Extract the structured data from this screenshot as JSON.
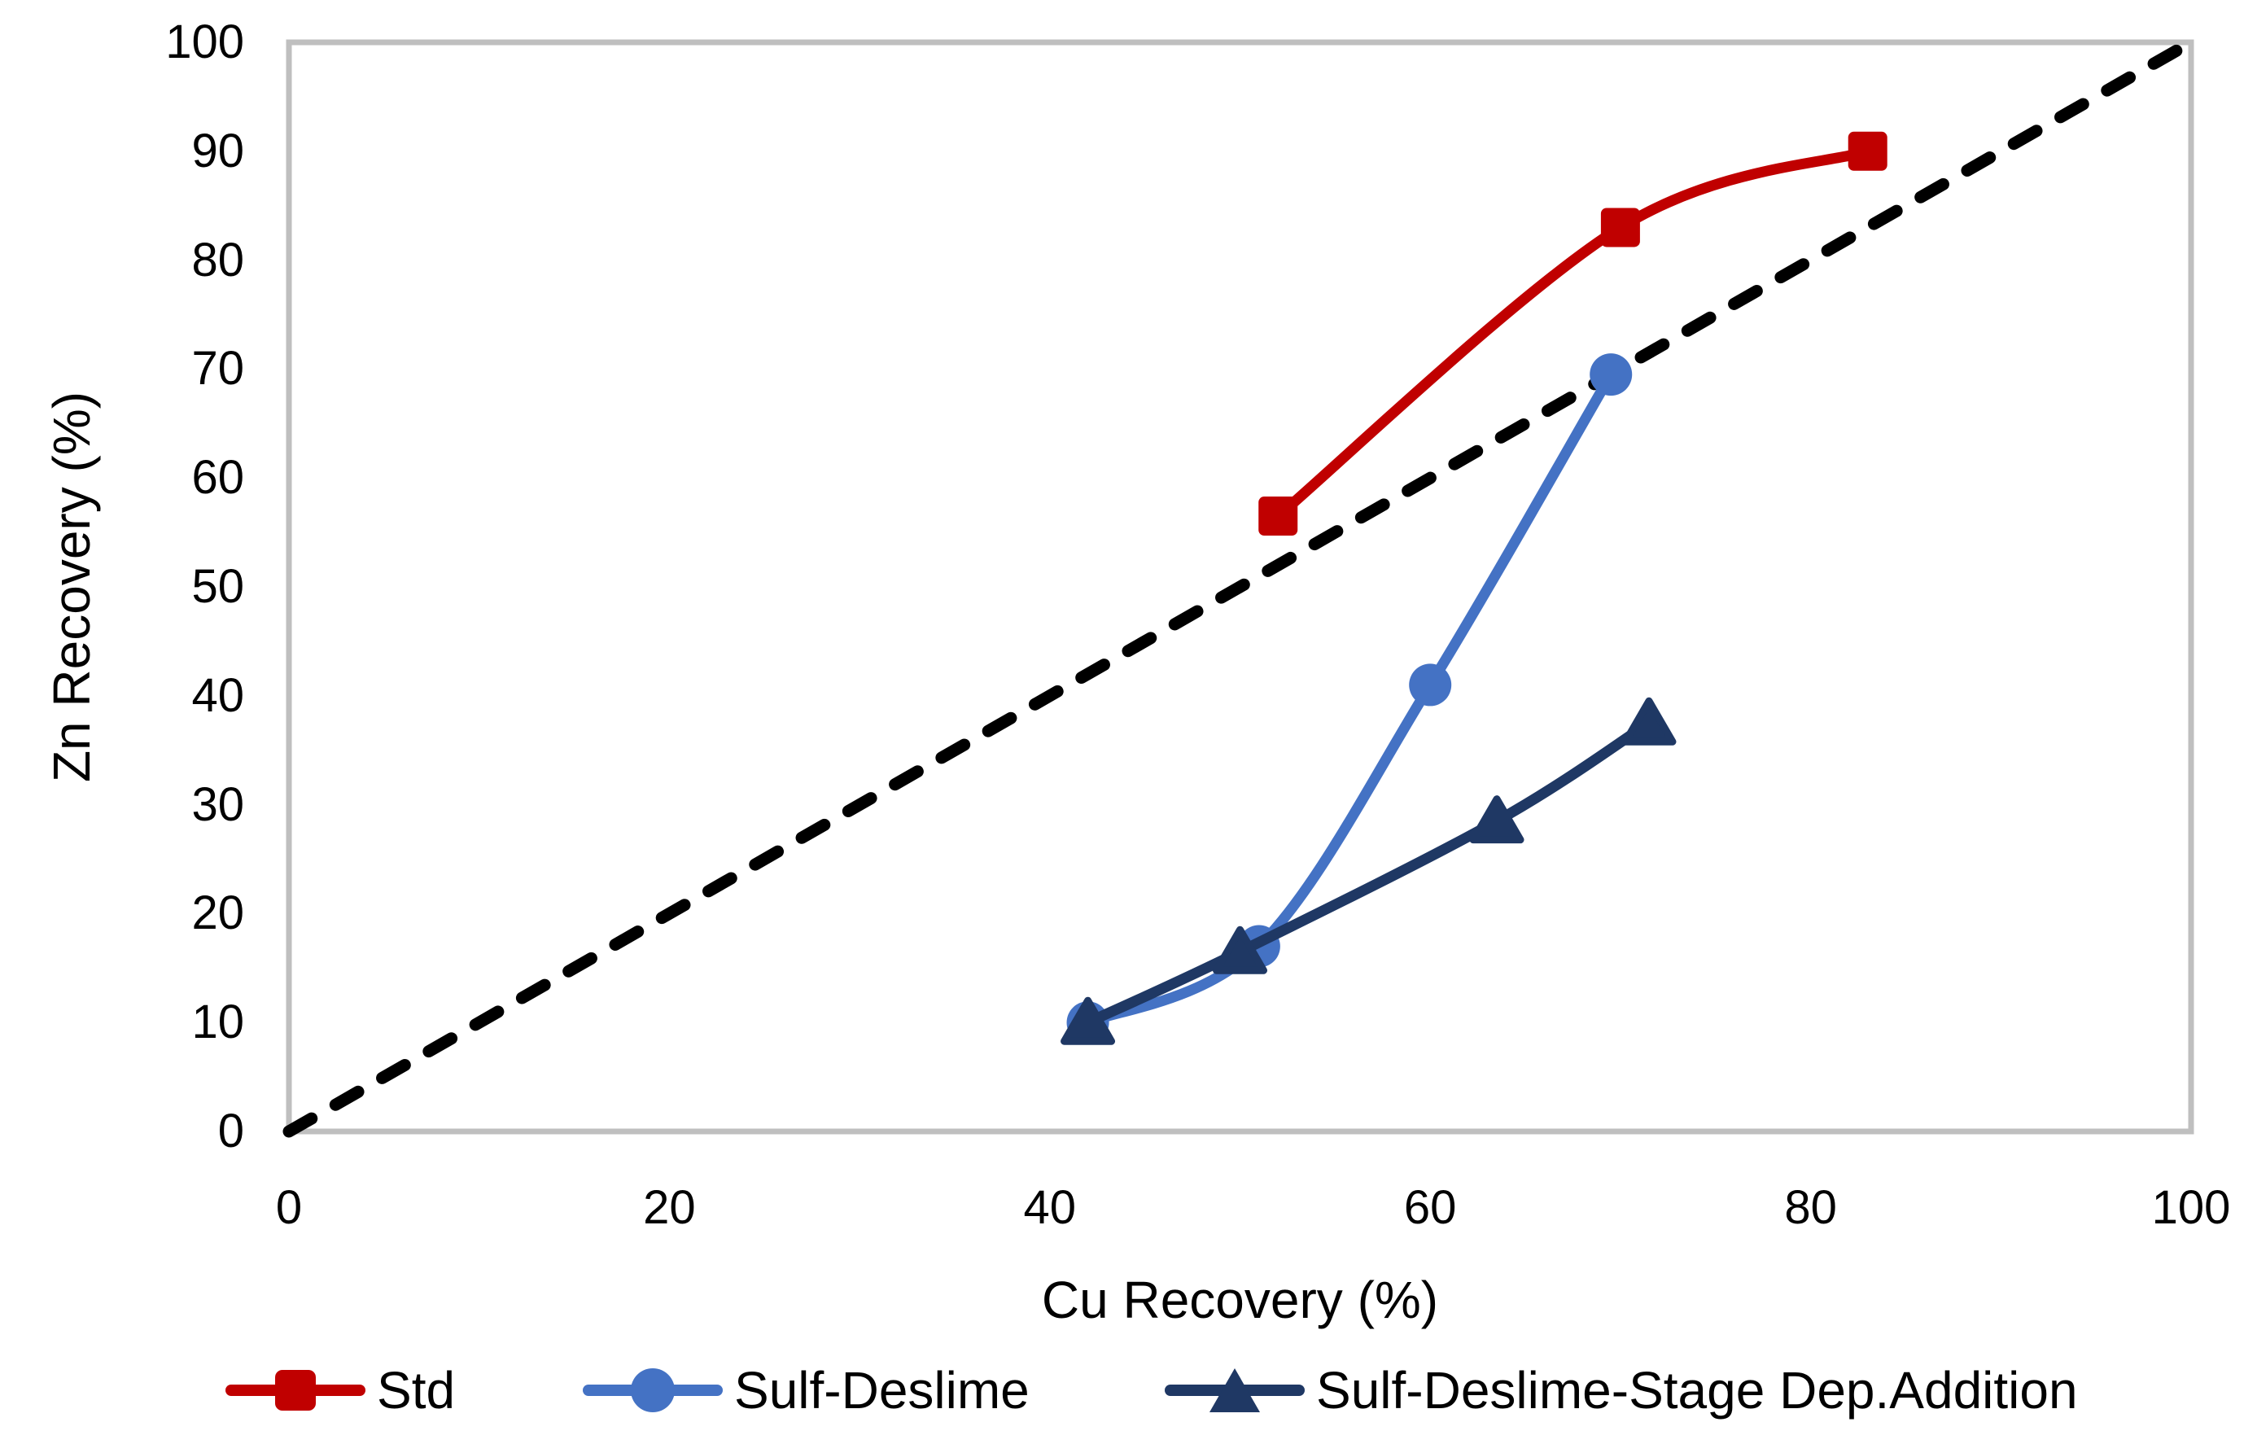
{
  "chart_data": {
    "type": "line",
    "title": "",
    "xlabel": "Cu Recovery (%)",
    "ylabel": "Zn Recovery (%)",
    "xlim": [
      0,
      100
    ],
    "ylim": [
      0,
      100
    ],
    "xticks": [
      0,
      20,
      40,
      60,
      80,
      100
    ],
    "yticks": [
      0,
      10,
      20,
      30,
      40,
      50,
      60,
      70,
      80,
      90,
      100
    ],
    "grid": false,
    "legend_position": "bottom",
    "plot_border_color": "#bfbfbf",
    "reference_line": {
      "name": "y = x diagonal",
      "style": "dashed",
      "color": "#000000",
      "points": [
        [
          0,
          0
        ],
        [
          100,
          100
        ]
      ]
    },
    "series": [
      {
        "name": "Std",
        "color": "#c00000",
        "marker": "square",
        "smooth": true,
        "points": [
          [
            52,
            56.5
          ],
          [
            70,
            83
          ],
          [
            83,
            90
          ]
        ]
      },
      {
        "name": "Sulf-Deslime",
        "color": "#4472c4",
        "marker": "circle",
        "smooth": true,
        "points": [
          [
            42,
            10
          ],
          [
            51,
            17
          ],
          [
            60,
            41
          ],
          [
            69.5,
            69.5
          ]
        ]
      },
      {
        "name": "Sulf-Deslime-Stage Dep.Addition",
        "color": "#1f3864",
        "marker": "triangle",
        "smooth": true,
        "points": [
          [
            42,
            10
          ],
          [
            50,
            16.5
          ],
          [
            63.5,
            28.5
          ],
          [
            71.5,
            37.5
          ]
        ]
      }
    ]
  },
  "legend": {
    "items": [
      {
        "label": "Std",
        "color": "#c00000",
        "marker": "square"
      },
      {
        "label": "Sulf-Deslime",
        "color": "#4472c4",
        "marker": "circle"
      },
      {
        "label": "Sulf-Deslime-Stage Dep.Addition",
        "color": "#1f3864",
        "marker": "triangle"
      }
    ]
  }
}
